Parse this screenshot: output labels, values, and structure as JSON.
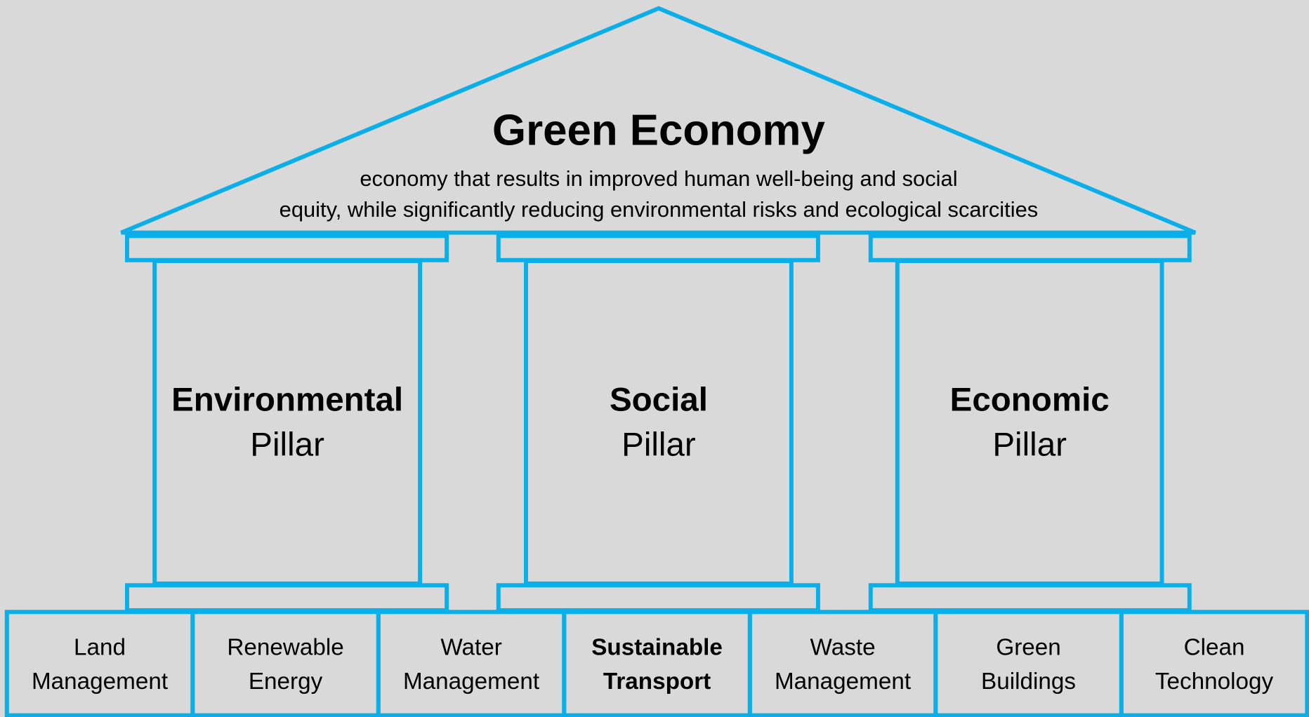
{
  "header": {
    "title": "Green Economy",
    "description": [
      "economy that results in improved human well-being and social",
      "equity, while significantly reducing environmental risks and ecological scarcities"
    ]
  },
  "pillars": [
    {
      "name": "Environmental",
      "label": "Pillar"
    },
    {
      "name": "Social",
      "label": "Pillar"
    },
    {
      "name": "Economic",
      "label": "Pillar"
    }
  ],
  "foundation": [
    {
      "lines": [
        "Land",
        "Management"
      ]
    },
    {
      "lines": [
        "Renewable",
        "Energy"
      ]
    },
    {
      "lines": [
        "Water",
        "Management"
      ]
    },
    {
      "lines": [
        "Sustainable",
        "Transport"
      ],
      "bold": true
    },
    {
      "lines": [
        "Waste",
        "Management"
      ]
    },
    {
      "lines": [
        "Green",
        "Buildings"
      ]
    },
    {
      "lines": [
        "Clean",
        "Technology"
      ]
    }
  ]
}
